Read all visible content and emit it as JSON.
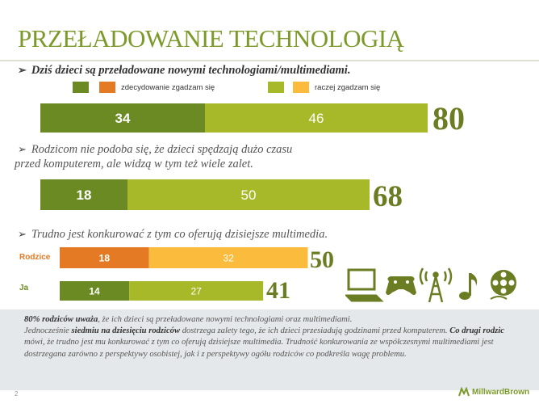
{
  "title": "PRZEŁADOWANIE TECHNOLOGIĄ",
  "colors": {
    "dark_green": "#6b8a23",
    "light_green": "#a7b928",
    "dark_orange": "#e47a24",
    "light_orange": "#fbbc3e",
    "title_green": "#7b9a2a"
  },
  "legend": [
    {
      "label": "zdecydowanie zgadzam się",
      "colors": [
        "#6b8a23",
        "#e47a24"
      ]
    },
    {
      "label": "raczej zgadzam się",
      "colors": [
        "#a7b928",
        "#fbbc3e"
      ]
    }
  ],
  "statements": [
    {
      "text": "Dziś dzieci są przeładowane nowymi technologiami/multimediami."
    },
    {
      "line1": "Rodzicom nie podoba się, że dzieci spędzają dużo czasu",
      "line2": "przed komputerem, ale widzą w tym też wiele zalet."
    },
    {
      "text": "Trudno jest konkurować z tym co oferują dzisiejsze multimedia."
    }
  ],
  "chart_data": {
    "type": "bar",
    "orientation": "horizontal",
    "stacked": true,
    "series": [
      {
        "name": "zdecydowanie zgadzam się",
        "values": [
          34,
          18,
          18,
          14
        ]
      },
      {
        "name": "raczej zgadzam się",
        "values": [
          46,
          50,
          32,
          27
        ]
      }
    ],
    "row_labels": [
      "",
      "",
      "Rodzice",
      "Ja"
    ],
    "totals": [
      "80",
      "68",
      "50",
      "41"
    ],
    "xlim": [
      0,
      100
    ]
  },
  "summary": {
    "p1_bold": "80% rodziców uważa",
    "p1_rest": ", że ich dzieci są przeładowane nowymi technologiami oraz multimediami.",
    "p2_pre": "Jednocześnie ",
    "p2_bold": "siedmiu na dziesięciu rodziców",
    "p2_mid": " dostrzega zalety tego, że ich dzieci przesiadują godzinami przed komputerem. ",
    "p2_bold2": "Co drugi rodzic",
    "p2_post": " mówi, że trudno jest mu konkurować z tym co oferują dzisiejsze multimedia. Trudność konkurowania ze współczesnymi multimediami jest dostrzegana zarówno z perspektywy osobistej, jak i z perspektywy ogółu rodziców co podkreśla wagę problemu."
  },
  "footer": {
    "page_number": "2",
    "logo_text": "MillwardBrown"
  },
  "icons": [
    "laptop-icon",
    "gamepad-icon",
    "antenna-icon",
    "music-note-icon",
    "film-reel-icon"
  ]
}
